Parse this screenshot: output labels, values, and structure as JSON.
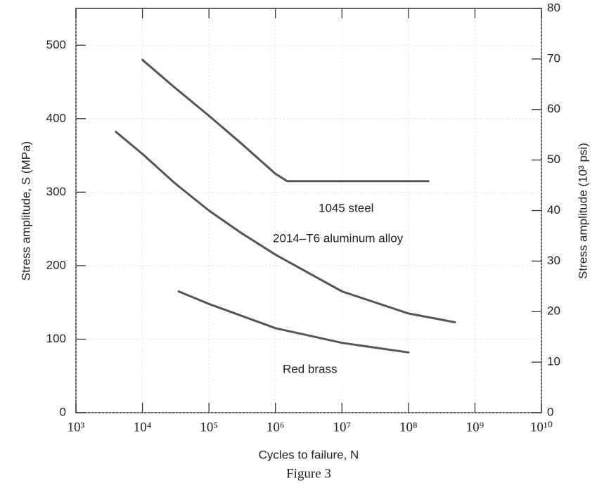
{
  "chart_data": {
    "type": "line",
    "xlabel": "Cycles to failure, N",
    "ylabel": "Stress amplitude, S (MPa)",
    "y2label": "Stress amplitude (10³ psi)",
    "caption": "Figure 3",
    "xscale": "log",
    "xlim": [
      1000,
      10000000000
    ],
    "xticks": [
      {
        "value": 1000,
        "label": "10³"
      },
      {
        "value": 10000,
        "label": "10⁴"
      },
      {
        "value": 100000,
        "label": "10⁵"
      },
      {
        "value": 1000000,
        "label": "10⁶"
      },
      {
        "value": 10000000,
        "label": "10⁷"
      },
      {
        "value": 100000000,
        "label": "10⁸"
      },
      {
        "value": 1000000000,
        "label": "10⁹"
      },
      {
        "value": 10000000000,
        "label": "10¹⁰"
      }
    ],
    "ylim": [
      0,
      550
    ],
    "yticks": [
      0,
      100,
      200,
      300,
      400,
      500
    ],
    "y2lim": [
      0,
      80
    ],
    "y2ticks": [
      0,
      10,
      20,
      30,
      40,
      50,
      60,
      70,
      80
    ],
    "grid": true,
    "series": [
      {
        "name": "1045 steel",
        "color": "#555555",
        "x": [
          10000,
          30000,
          100000,
          300000,
          1000000,
          1500000,
          10000000,
          200000000
        ],
        "values": [
          480,
          443,
          404,
          367,
          325,
          315,
          315,
          315
        ]
      },
      {
        "name": "2014–T6 aluminum alloy",
        "color": "#555555",
        "x": [
          4000,
          10000,
          30000,
          100000,
          300000,
          1000000,
          10000000,
          100000000,
          500000000
        ],
        "values": [
          382,
          352,
          313,
          275,
          245,
          215,
          165,
          135,
          123
        ]
      },
      {
        "name": "Red brass",
        "color": "#555555",
        "x": [
          35000,
          100000,
          1000000,
          10000000,
          100000000
        ],
        "values": [
          165,
          148,
          115,
          95,
          82
        ]
      }
    ]
  }
}
